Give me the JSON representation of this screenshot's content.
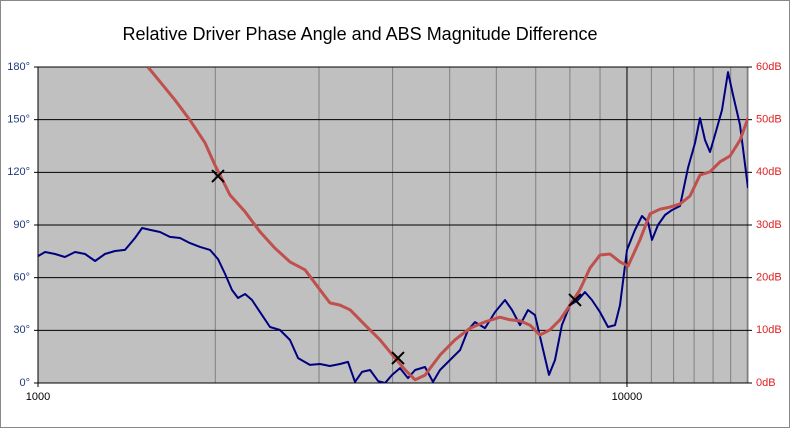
{
  "chart_data": {
    "type": "line",
    "title": "Relative Driver Phase Angle and ABS Magnitude Difference",
    "x_log": true,
    "xlim": [
      1000,
      16050
    ],
    "xticks": [
      1000,
      10000
    ],
    "x_minor_ticks": [
      2000,
      3000,
      4000,
      5000,
      6000,
      7000,
      8000,
      9000,
      11000,
      12000,
      13000,
      14000,
      15000,
      16000
    ],
    "ylim": [
      0,
      180
    ],
    "yticks": [
      {
        "value": 0,
        "label": "0°"
      },
      {
        "value": 30,
        "label": "30°"
      },
      {
        "value": 60,
        "label": "60°"
      },
      {
        "value": 90,
        "label": "90°"
      },
      {
        "value": 120,
        "label": "120°"
      },
      {
        "value": 150,
        "label": "150°"
      },
      {
        "value": 180,
        "label": "180°"
      }
    ],
    "y2lim": [
      0,
      60
    ],
    "y2ticks": [
      {
        "value": 0,
        "label": "0dB"
      },
      {
        "value": 10,
        "label": "10dB"
      },
      {
        "value": 20,
        "label": "20dB"
      },
      {
        "value": 30,
        "label": "30dB"
      },
      {
        "value": 40,
        "label": "40dB"
      },
      {
        "value": 50,
        "label": "50dB"
      },
      {
        "value": 60,
        "label": "60dB"
      }
    ],
    "grid": true,
    "series": [
      {
        "color": "#000080",
        "axis": "y",
        "x": [
          1000,
          1028,
          1069,
          1111,
          1156,
          1202,
          1250,
          1299,
          1351,
          1405,
          1461,
          1502,
          1550,
          1611,
          1675,
          1742,
          1812,
          1884,
          1959,
          2021,
          2078,
          2135,
          2186,
          2247,
          2309,
          2382,
          2477,
          2576,
          2678,
          2764,
          2895,
          3011,
          3131,
          3256,
          3360,
          3453,
          3549,
          3663,
          3780,
          3884,
          3992,
          4118,
          4249,
          4367,
          4541,
          4685,
          4815,
          5007,
          5207,
          5372,
          5521,
          5741,
          5970,
          6208,
          6379,
          6582,
          6791,
          6979,
          7173,
          7372,
          7546,
          7755,
          8002,
          8256,
          8485,
          8720,
          8998,
          9284,
          9542,
          9731,
          10000,
          10318,
          10604,
          10856,
          11026,
          11288,
          11601,
          11922,
          12302,
          12693,
          13045,
          13303,
          13566,
          13835,
          14108,
          14500,
          14844,
          15137,
          15557,
          16050
        ],
        "values": [
          72.3,
          74.6,
          73.5,
          71.8,
          74.6,
          73.5,
          69.5,
          73.5,
          75.2,
          75.8,
          82.6,
          88.3,
          87.2,
          86.0,
          83.2,
          82.6,
          79.7,
          77.5,
          75.8,
          70.6,
          62.1,
          53.0,
          48.4,
          50.7,
          47.3,
          40.4,
          31.9,
          30.2,
          24.5,
          14.2,
          10.3,
          10.8,
          9.7,
          10.8,
          12.0,
          0.6,
          6.3,
          7.4,
          1.1,
          0,
          4.6,
          8.5,
          2.8,
          7.4,
          9.1,
          0.6,
          7.4,
          13.1,
          18.8,
          30.2,
          34.7,
          31.3,
          40.4,
          47.3,
          41.6,
          33.0,
          41.6,
          38.7,
          21.6,
          4.6,
          13.1,
          33.0,
          44.4,
          47.3,
          51.8,
          47.3,
          40.4,
          31.9,
          33.0,
          44.4,
          75.8,
          87.2,
          95.1,
          91.7,
          81.5,
          90.0,
          95.7,
          98.5,
          100.8,
          122.5,
          136.7,
          150.9,
          138.4,
          131.6,
          141.3,
          155.5,
          177.1,
          164.1,
          147.0,
          111.1
        ]
      },
      {
        "color": "#c0504d",
        "axis": "y2",
        "x": [
          1537,
          1611,
          1709,
          1812,
          1921,
          1997,
          2037,
          2118,
          2247,
          2382,
          2526,
          2678,
          2840,
          3011,
          3131,
          3256,
          3387,
          3592,
          3808,
          4039,
          4200,
          4367,
          4541,
          4815,
          5106,
          5414,
          5741,
          6088,
          6331,
          6582,
          6844,
          7116,
          7401,
          7695,
          8002,
          8320,
          8650,
          8998,
          9357,
          9731,
          10039,
          10522,
          10940,
          11377,
          11830,
          12302,
          12793,
          13303,
          13835,
          14387,
          14961,
          15557,
          16050
        ],
        "values": [
          60.0,
          57.2,
          53.7,
          49.9,
          45.6,
          41.4,
          39.5,
          35.7,
          32.5,
          28.7,
          25.6,
          23.0,
          21.5,
          17.7,
          15.2,
          14.8,
          13.9,
          11.0,
          8.2,
          4.7,
          2.5,
          0.6,
          1.5,
          5.3,
          8.2,
          10.4,
          11.6,
          12.5,
          12.0,
          11.8,
          11.0,
          9.1,
          10.1,
          12.0,
          14.8,
          17.7,
          21.8,
          24.3,
          24.5,
          23.0,
          22.2,
          27.2,
          32.1,
          33.0,
          33.4,
          34.0,
          35.5,
          39.5,
          40.1,
          42.0,
          43.1,
          46.1,
          50.3
        ]
      }
    ],
    "markers": {
      "color": "#000000",
      "x": [
        2021,
        4085,
        8161
      ],
      "values": [
        117.9,
        14.2,
        47.3
      ]
    }
  }
}
